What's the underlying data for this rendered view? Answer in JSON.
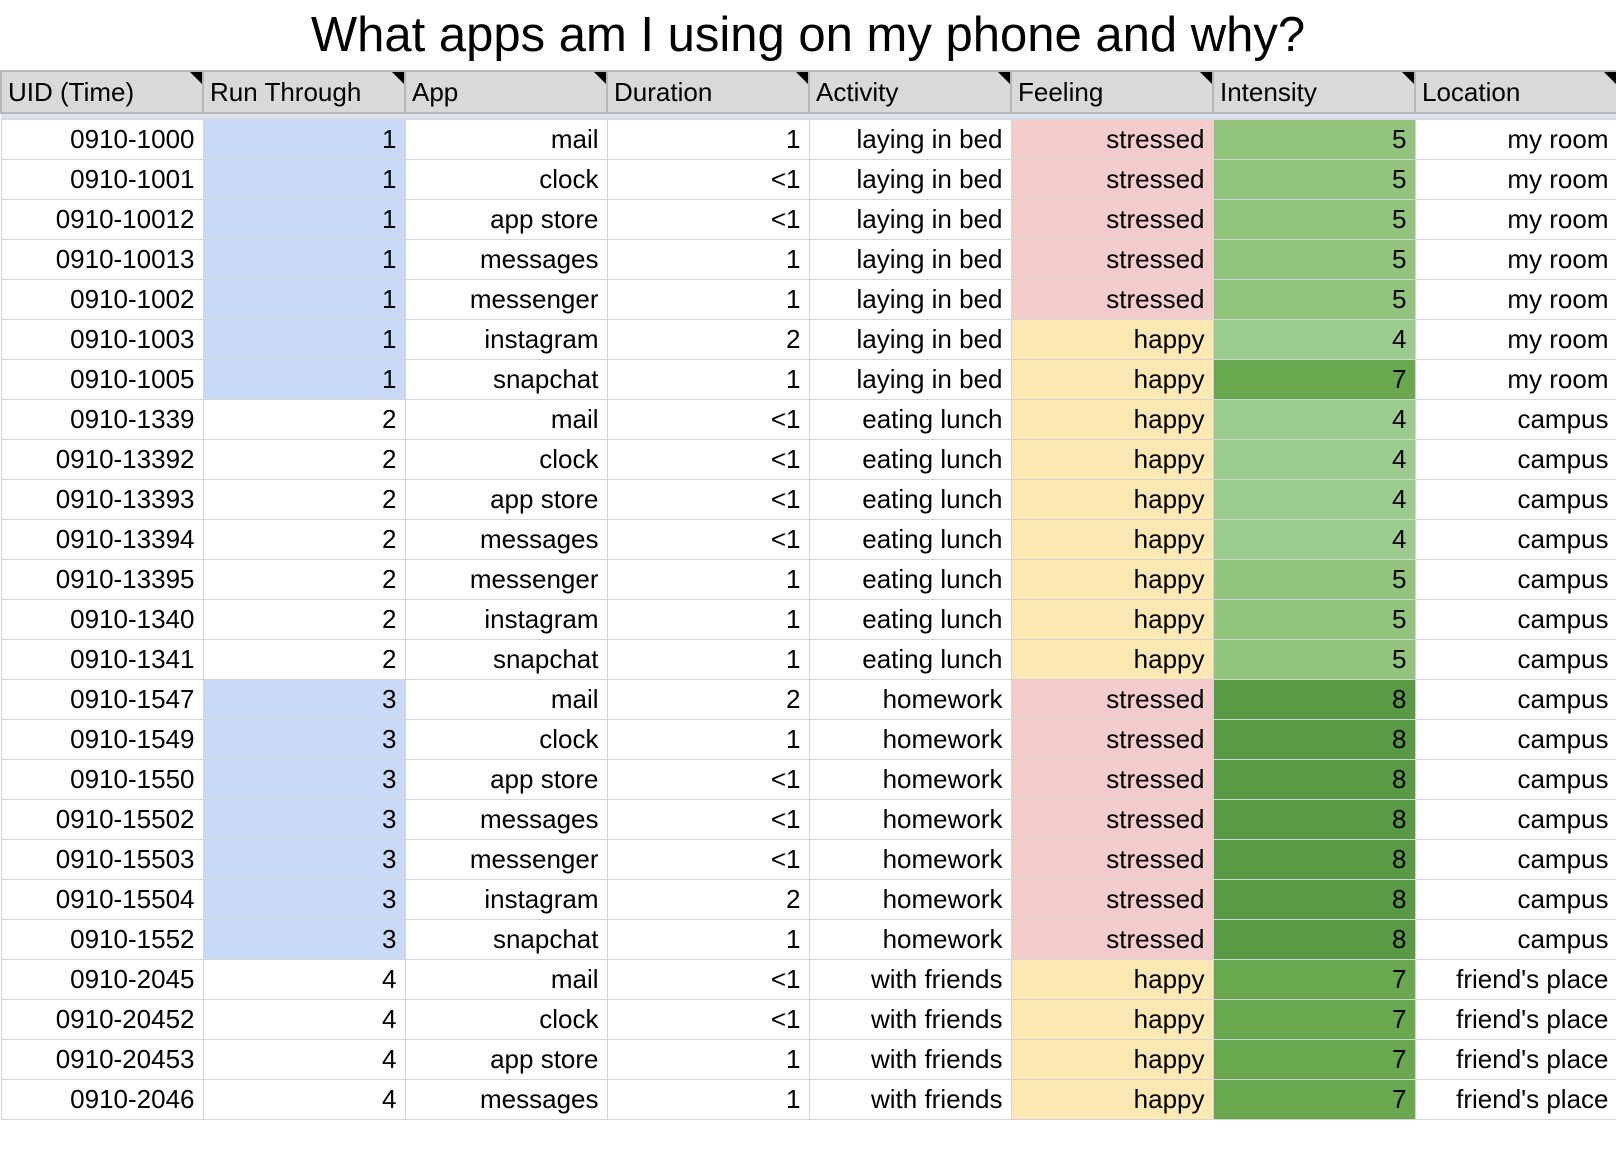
{
  "title": "What apps am I using on my phone and why?",
  "columns": [
    "UID (Time)",
    "Run Through",
    "App",
    "Duration",
    "Activity",
    "Feeling",
    "Intensity",
    "Location"
  ],
  "colors": {
    "header_bg": "#d9d9d9",
    "run_highlight": "#c9daf8",
    "stressed": "#f4cccc",
    "happy": "#fce8b2",
    "intensity_4": "#9ccb8e",
    "intensity_5": "#93c47d",
    "intensity_7": "#6aa84f",
    "intensity_8": "#5b9a44"
  },
  "rows": [
    {
      "uid": "0910-1000",
      "run": "1",
      "app": "mail",
      "duration": "1",
      "activity": "laying in bed",
      "feeling": "stressed",
      "intensity": "5",
      "location": "my room"
    },
    {
      "uid": "0910-1001",
      "run": "1",
      "app": "clock",
      "duration": "<1",
      "activity": "laying in bed",
      "feeling": "stressed",
      "intensity": "5",
      "location": "my room"
    },
    {
      "uid": "0910-10012",
      "run": "1",
      "app": "app store",
      "duration": "<1",
      "activity": "laying in bed",
      "feeling": "stressed",
      "intensity": "5",
      "location": "my room"
    },
    {
      "uid": "0910-10013",
      "run": "1",
      "app": "messages",
      "duration": "1",
      "activity": "laying in bed",
      "feeling": "stressed",
      "intensity": "5",
      "location": "my room"
    },
    {
      "uid": "0910-1002",
      "run": "1",
      "app": "messenger",
      "duration": "1",
      "activity": "laying in bed",
      "feeling": "stressed",
      "intensity": "5",
      "location": "my room"
    },
    {
      "uid": "0910-1003",
      "run": "1",
      "app": "instagram",
      "duration": "2",
      "activity": "laying in bed",
      "feeling": "happy",
      "intensity": "4",
      "location": "my room"
    },
    {
      "uid": "0910-1005",
      "run": "1",
      "app": "snapchat",
      "duration": "1",
      "activity": "laying in bed",
      "feeling": "happy",
      "intensity": "7",
      "location": "my room"
    },
    {
      "uid": "0910-1339",
      "run": "2",
      "app": "mail",
      "duration": "<1",
      "activity": "eating lunch",
      "feeling": "happy",
      "intensity": "4",
      "location": "campus"
    },
    {
      "uid": "0910-13392",
      "run": "2",
      "app": "clock",
      "duration": "<1",
      "activity": "eating lunch",
      "feeling": "happy",
      "intensity": "4",
      "location": "campus"
    },
    {
      "uid": "0910-13393",
      "run": "2",
      "app": "app store",
      "duration": "<1",
      "activity": "eating lunch",
      "feeling": "happy",
      "intensity": "4",
      "location": "campus"
    },
    {
      "uid": "0910-13394",
      "run": "2",
      "app": "messages",
      "duration": "<1",
      "activity": "eating lunch",
      "feeling": "happy",
      "intensity": "4",
      "location": "campus"
    },
    {
      "uid": "0910-13395",
      "run": "2",
      "app": "messenger",
      "duration": "1",
      "activity": "eating lunch",
      "feeling": "happy",
      "intensity": "5",
      "location": "campus"
    },
    {
      "uid": "0910-1340",
      "run": "2",
      "app": "instagram",
      "duration": "1",
      "activity": "eating lunch",
      "feeling": "happy",
      "intensity": "5",
      "location": "campus"
    },
    {
      "uid": "0910-1341",
      "run": "2",
      "app": "snapchat",
      "duration": "1",
      "activity": "eating lunch",
      "feeling": "happy",
      "intensity": "5",
      "location": "campus"
    },
    {
      "uid": "0910-1547",
      "run": "3",
      "app": "mail",
      "duration": "2",
      "activity": "homework",
      "feeling": "stressed",
      "intensity": "8",
      "location": "campus"
    },
    {
      "uid": "0910-1549",
      "run": "3",
      "app": "clock",
      "duration": "1",
      "activity": "homework",
      "feeling": "stressed",
      "intensity": "8",
      "location": "campus"
    },
    {
      "uid": "0910-1550",
      "run": "3",
      "app": "app store",
      "duration": "<1",
      "activity": "homework",
      "feeling": "stressed",
      "intensity": "8",
      "location": "campus"
    },
    {
      "uid": "0910-15502",
      "run": "3",
      "app": "messages",
      "duration": "<1",
      "activity": "homework",
      "feeling": "stressed",
      "intensity": "8",
      "location": "campus"
    },
    {
      "uid": "0910-15503",
      "run": "3",
      "app": "messenger",
      "duration": "<1",
      "activity": "homework",
      "feeling": "stressed",
      "intensity": "8",
      "location": "campus"
    },
    {
      "uid": "0910-15504",
      "run": "3",
      "app": "instagram",
      "duration": "2",
      "activity": "homework",
      "feeling": "stressed",
      "intensity": "8",
      "location": "campus"
    },
    {
      "uid": "0910-1552",
      "run": "3",
      "app": "snapchat",
      "duration": "1",
      "activity": "homework",
      "feeling": "stressed",
      "intensity": "8",
      "location": "campus"
    },
    {
      "uid": "0910-2045",
      "run": "4",
      "app": "mail",
      "duration": "<1",
      "activity": "with friends",
      "feeling": "happy",
      "intensity": "7",
      "location": "friend's place"
    },
    {
      "uid": "0910-20452",
      "run": "4",
      "app": "clock",
      "duration": "<1",
      "activity": "with friends",
      "feeling": "happy",
      "intensity": "7",
      "location": "friend's place"
    },
    {
      "uid": "0910-20453",
      "run": "4",
      "app": "app store",
      "duration": "1",
      "activity": "with friends",
      "feeling": "happy",
      "intensity": "7",
      "location": "friend's place"
    },
    {
      "uid": "0910-2046",
      "run": "4",
      "app": "messages",
      "duration": "1",
      "activity": "with friends",
      "feeling": "happy",
      "intensity": "7",
      "location": "friend's place"
    }
  ]
}
